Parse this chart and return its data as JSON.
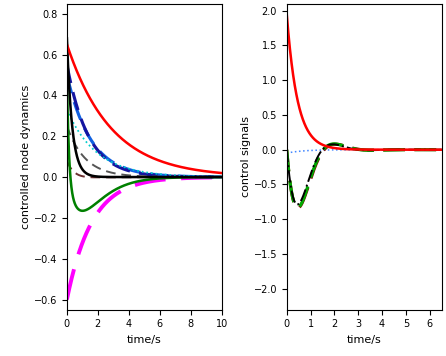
{
  "left_ylim": [
    -0.65,
    0.85
  ],
  "left_xlim": [
    0,
    10
  ],
  "left_yticks": [
    -0.6,
    -0.4,
    -0.2,
    0,
    0.2,
    0.4,
    0.6,
    0.8
  ],
  "left_xticks": [
    0,
    2,
    4,
    6,
    8,
    10
  ],
  "left_ylabel": "controlled node dynamics",
  "left_xlabel": "time/s",
  "right_ylim": [
    -2.3,
    2.1
  ],
  "right_xlim": [
    0,
    6.5
  ],
  "right_yticks": [
    -2,
    -1.5,
    -1,
    -0.5,
    0,
    0.5,
    1,
    1.5,
    2
  ],
  "right_xticks": [
    0,
    1,
    2,
    3,
    4,
    5,
    6
  ],
  "right_ylabel": "control signals",
  "right_xlabel": "time/s",
  "background_color": "#ffffff",
  "figsize": [
    4.46,
    3.56
  ],
  "dpi": 100
}
